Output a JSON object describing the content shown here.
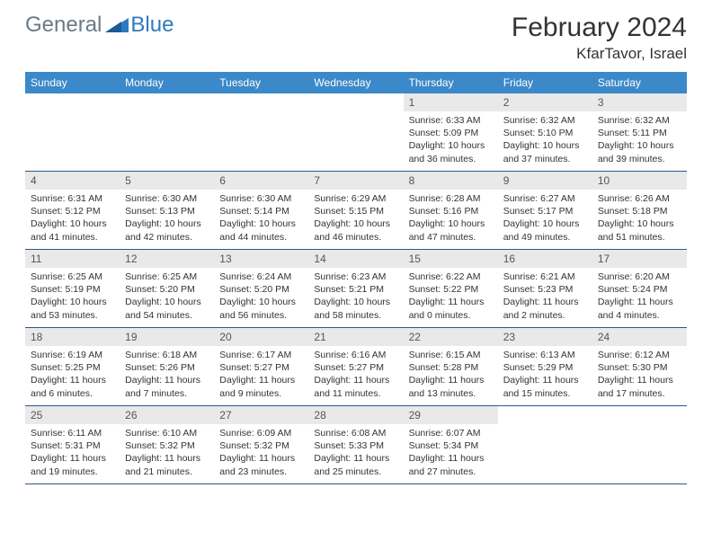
{
  "colors": {
    "header_bg": "#3b89c9",
    "header_text": "#ffffff",
    "daynum_bg": "#e9e9e9",
    "daynum_text": "#555555",
    "body_text": "#333333",
    "week_border": "#2a5a8a",
    "logo_gray": "#6a7a86",
    "logo_blue": "#2f7abf"
  },
  "logo": {
    "general": "General",
    "blue": "Blue"
  },
  "title": "February 2024",
  "location": "KfarTavor, Israel",
  "weekdays": [
    "Sunday",
    "Monday",
    "Tuesday",
    "Wednesday",
    "Thursday",
    "Friday",
    "Saturday"
  ],
  "weeks": [
    [
      {
        "n": "",
        "sr": "",
        "ss": "",
        "dl": ""
      },
      {
        "n": "",
        "sr": "",
        "ss": "",
        "dl": ""
      },
      {
        "n": "",
        "sr": "",
        "ss": "",
        "dl": ""
      },
      {
        "n": "",
        "sr": "",
        "ss": "",
        "dl": ""
      },
      {
        "n": "1",
        "sr": "Sunrise: 6:33 AM",
        "ss": "Sunset: 5:09 PM",
        "dl": "Daylight: 10 hours and 36 minutes."
      },
      {
        "n": "2",
        "sr": "Sunrise: 6:32 AM",
        "ss": "Sunset: 5:10 PM",
        "dl": "Daylight: 10 hours and 37 minutes."
      },
      {
        "n": "3",
        "sr": "Sunrise: 6:32 AM",
        "ss": "Sunset: 5:11 PM",
        "dl": "Daylight: 10 hours and 39 minutes."
      }
    ],
    [
      {
        "n": "4",
        "sr": "Sunrise: 6:31 AM",
        "ss": "Sunset: 5:12 PM",
        "dl": "Daylight: 10 hours and 41 minutes."
      },
      {
        "n": "5",
        "sr": "Sunrise: 6:30 AM",
        "ss": "Sunset: 5:13 PM",
        "dl": "Daylight: 10 hours and 42 minutes."
      },
      {
        "n": "6",
        "sr": "Sunrise: 6:30 AM",
        "ss": "Sunset: 5:14 PM",
        "dl": "Daylight: 10 hours and 44 minutes."
      },
      {
        "n": "7",
        "sr": "Sunrise: 6:29 AM",
        "ss": "Sunset: 5:15 PM",
        "dl": "Daylight: 10 hours and 46 minutes."
      },
      {
        "n": "8",
        "sr": "Sunrise: 6:28 AM",
        "ss": "Sunset: 5:16 PM",
        "dl": "Daylight: 10 hours and 47 minutes."
      },
      {
        "n": "9",
        "sr": "Sunrise: 6:27 AM",
        "ss": "Sunset: 5:17 PM",
        "dl": "Daylight: 10 hours and 49 minutes."
      },
      {
        "n": "10",
        "sr": "Sunrise: 6:26 AM",
        "ss": "Sunset: 5:18 PM",
        "dl": "Daylight: 10 hours and 51 minutes."
      }
    ],
    [
      {
        "n": "11",
        "sr": "Sunrise: 6:25 AM",
        "ss": "Sunset: 5:19 PM",
        "dl": "Daylight: 10 hours and 53 minutes."
      },
      {
        "n": "12",
        "sr": "Sunrise: 6:25 AM",
        "ss": "Sunset: 5:20 PM",
        "dl": "Daylight: 10 hours and 54 minutes."
      },
      {
        "n": "13",
        "sr": "Sunrise: 6:24 AM",
        "ss": "Sunset: 5:20 PM",
        "dl": "Daylight: 10 hours and 56 minutes."
      },
      {
        "n": "14",
        "sr": "Sunrise: 6:23 AM",
        "ss": "Sunset: 5:21 PM",
        "dl": "Daylight: 10 hours and 58 minutes."
      },
      {
        "n": "15",
        "sr": "Sunrise: 6:22 AM",
        "ss": "Sunset: 5:22 PM",
        "dl": "Daylight: 11 hours and 0 minutes."
      },
      {
        "n": "16",
        "sr": "Sunrise: 6:21 AM",
        "ss": "Sunset: 5:23 PM",
        "dl": "Daylight: 11 hours and 2 minutes."
      },
      {
        "n": "17",
        "sr": "Sunrise: 6:20 AM",
        "ss": "Sunset: 5:24 PM",
        "dl": "Daylight: 11 hours and 4 minutes."
      }
    ],
    [
      {
        "n": "18",
        "sr": "Sunrise: 6:19 AM",
        "ss": "Sunset: 5:25 PM",
        "dl": "Daylight: 11 hours and 6 minutes."
      },
      {
        "n": "19",
        "sr": "Sunrise: 6:18 AM",
        "ss": "Sunset: 5:26 PM",
        "dl": "Daylight: 11 hours and 7 minutes."
      },
      {
        "n": "20",
        "sr": "Sunrise: 6:17 AM",
        "ss": "Sunset: 5:27 PM",
        "dl": "Daylight: 11 hours and 9 minutes."
      },
      {
        "n": "21",
        "sr": "Sunrise: 6:16 AM",
        "ss": "Sunset: 5:27 PM",
        "dl": "Daylight: 11 hours and 11 minutes."
      },
      {
        "n": "22",
        "sr": "Sunrise: 6:15 AM",
        "ss": "Sunset: 5:28 PM",
        "dl": "Daylight: 11 hours and 13 minutes."
      },
      {
        "n": "23",
        "sr": "Sunrise: 6:13 AM",
        "ss": "Sunset: 5:29 PM",
        "dl": "Daylight: 11 hours and 15 minutes."
      },
      {
        "n": "24",
        "sr": "Sunrise: 6:12 AM",
        "ss": "Sunset: 5:30 PM",
        "dl": "Daylight: 11 hours and 17 minutes."
      }
    ],
    [
      {
        "n": "25",
        "sr": "Sunrise: 6:11 AM",
        "ss": "Sunset: 5:31 PM",
        "dl": "Daylight: 11 hours and 19 minutes."
      },
      {
        "n": "26",
        "sr": "Sunrise: 6:10 AM",
        "ss": "Sunset: 5:32 PM",
        "dl": "Daylight: 11 hours and 21 minutes."
      },
      {
        "n": "27",
        "sr": "Sunrise: 6:09 AM",
        "ss": "Sunset: 5:32 PM",
        "dl": "Daylight: 11 hours and 23 minutes."
      },
      {
        "n": "28",
        "sr": "Sunrise: 6:08 AM",
        "ss": "Sunset: 5:33 PM",
        "dl": "Daylight: 11 hours and 25 minutes."
      },
      {
        "n": "29",
        "sr": "Sunrise: 6:07 AM",
        "ss": "Sunset: 5:34 PM",
        "dl": "Daylight: 11 hours and 27 minutes."
      },
      {
        "n": "",
        "sr": "",
        "ss": "",
        "dl": ""
      },
      {
        "n": "",
        "sr": "",
        "ss": "",
        "dl": ""
      }
    ]
  ]
}
